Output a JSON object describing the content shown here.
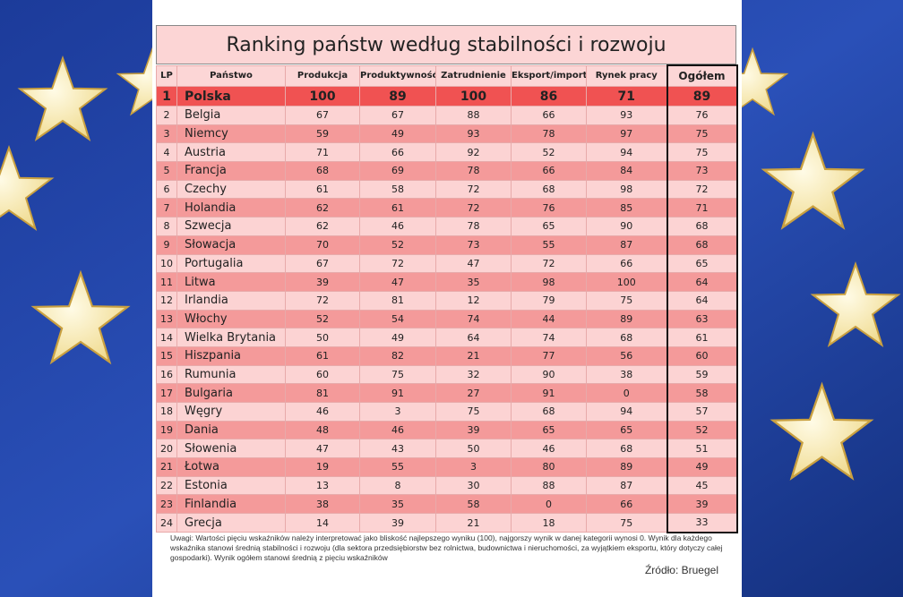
{
  "title": "Ranking państw według stabilności i rozwoju",
  "table": {
    "header": [
      "LP",
      "Państwo",
      "Produkcja",
      "Produktywność",
      "Zatrudnienie",
      "Eksport/import",
      "Rynek pracy",
      "Ogółem"
    ],
    "rows": [
      [
        1,
        "Polska",
        100,
        89,
        100,
        86,
        71,
        89
      ],
      [
        2,
        "Belgia",
        67,
        67,
        88,
        66,
        93,
        76
      ],
      [
        3,
        "Niemcy",
        59,
        49,
        93,
        78,
        97,
        75
      ],
      [
        4,
        "Austria",
        71,
        66,
        92,
        52,
        94,
        75
      ],
      [
        5,
        "Francja",
        68,
        69,
        78,
        66,
        84,
        73
      ],
      [
        6,
        "Czechy",
        61,
        58,
        72,
        68,
        98,
        72
      ],
      [
        7,
        "Holandia",
        62,
        61,
        72,
        76,
        85,
        71
      ],
      [
        8,
        "Szwecja",
        62,
        46,
        78,
        65,
        90,
        68
      ],
      [
        9,
        "Słowacja",
        70,
        52,
        73,
        55,
        87,
        68
      ],
      [
        10,
        "Portugalia",
        67,
        72,
        47,
        72,
        66,
        65
      ],
      [
        11,
        "Litwa",
        39,
        47,
        35,
        98,
        100,
        64
      ],
      [
        12,
        "Irlandia",
        72,
        81,
        12,
        79,
        75,
        64
      ],
      [
        13,
        "Włochy",
        52,
        54,
        74,
        44,
        89,
        63
      ],
      [
        14,
        "Wielka Brytania",
        50,
        49,
        64,
        74,
        68,
        61
      ],
      [
        15,
        "Hiszpania",
        61,
        82,
        21,
        77,
        56,
        60
      ],
      [
        16,
        "Rumunia",
        60,
        75,
        32,
        90,
        38,
        59
      ],
      [
        17,
        "Bulgaria",
        81,
        91,
        27,
        91,
        0,
        58
      ],
      [
        18,
        "Węgry",
        46,
        3,
        75,
        68,
        94,
        57
      ],
      [
        19,
        "Dania",
        48,
        46,
        39,
        65,
        65,
        52
      ],
      [
        20,
        "Słowenia",
        47,
        43,
        50,
        46,
        68,
        51
      ],
      [
        21,
        "Łotwa",
        19,
        55,
        3,
        80,
        89,
        49
      ],
      [
        22,
        "Estonia",
        13,
        8,
        30,
        88,
        87,
        45
      ],
      [
        23,
        "Finlandia",
        38,
        35,
        58,
        0,
        66,
        39
      ],
      [
        24,
        "Grecja",
        14,
        39,
        21,
        18,
        75,
        33
      ]
    ]
  },
  "note": "Uwagi: Wartości pięciu wskaźników należy interpretować jako bliskość najlepszego wyniku (100), najgorszy wynik w danej kategorii wynosi 0. Wynik dla każdego wskaźnika stanowi średnią stabilności i rozwoju (dla sektora przedsiębiorstw bez rolnictwa, budownictwa i nieruchomości, za wyjątkiem eksportu, który dotyczy całej gospodarki). Wynik ogółem stanowi średnią z pięciu wskaźników",
  "source": "Źródło: Bruegel"
}
